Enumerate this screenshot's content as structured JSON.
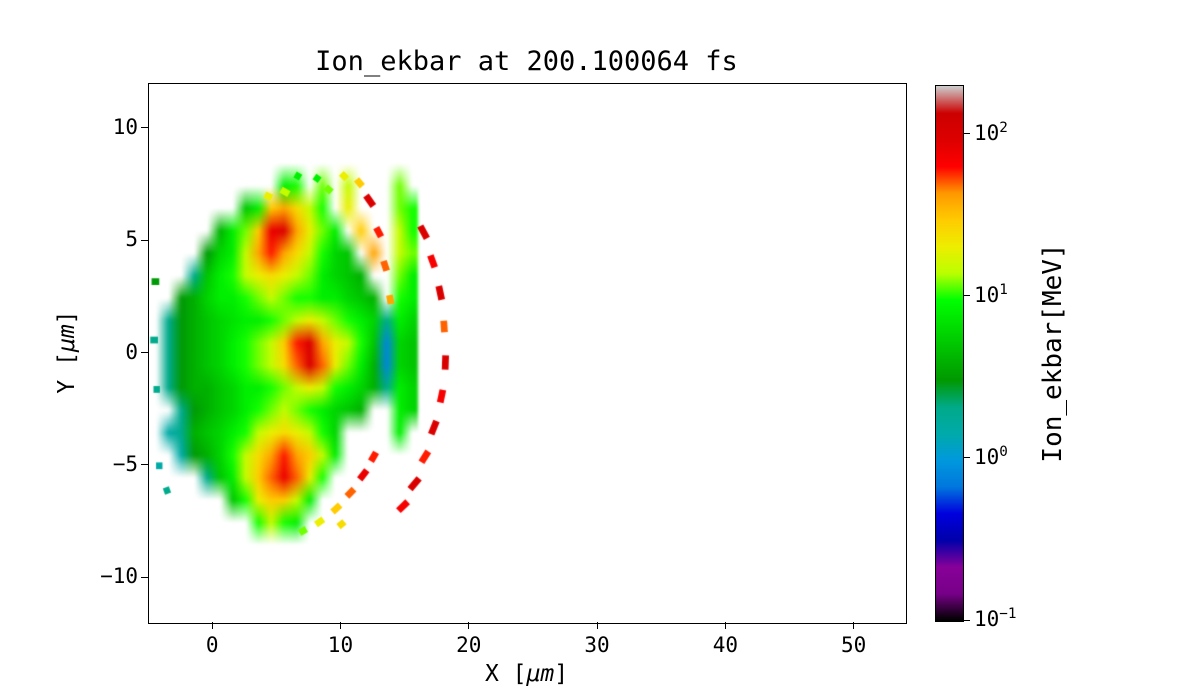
{
  "chart_data": {
    "type": "heatmap",
    "title": "Ion_ekbar at 200.100064 fs",
    "xlabel": "X [μm]",
    "ylabel": "Y [μm]",
    "xlim": [
      -5,
      54
    ],
    "ylim": [
      -12,
      12
    ],
    "x_ticks": [
      0,
      10,
      20,
      30,
      40,
      50
    ],
    "x_tick_labels": [
      "0",
      "10",
      "20",
      "30",
      "40",
      "50"
    ],
    "y_ticks": [
      -10,
      -5,
      0,
      5,
      10
    ],
    "y_tick_labels": [
      "−10",
      "−5",
      "0",
      "5",
      "10"
    ],
    "grid_on": false,
    "legend": "none",
    "colorbar": {
      "label": "Ion_ekbar[MeV]",
      "scale": "log",
      "vmin": 0.1,
      "vmax": 200,
      "tick_values": [
        0.1,
        1,
        10,
        100
      ],
      "tick_exponents": [
        "−1",
        "0",
        "1",
        "2"
      ],
      "colormap": "nipy_spectral",
      "stops": [
        [
          0.0,
          "#000000"
        ],
        [
          0.05,
          "#770088"
        ],
        [
          0.1,
          "#880099"
        ],
        [
          0.15,
          "#0000aa"
        ],
        [
          0.2,
          "#0000dd"
        ],
        [
          0.25,
          "#0077dd"
        ],
        [
          0.3,
          "#0099dd"
        ],
        [
          0.35,
          "#00aaaa"
        ],
        [
          0.4,
          "#00aa88"
        ],
        [
          0.45,
          "#009900"
        ],
        [
          0.5,
          "#00bb00"
        ],
        [
          0.55,
          "#00dd00"
        ],
        [
          0.6,
          "#00ff00"
        ],
        [
          0.65,
          "#bbff00"
        ],
        [
          0.7,
          "#eeee00"
        ],
        [
          0.75,
          "#ffcc00"
        ],
        [
          0.8,
          "#ff9900"
        ],
        [
          0.85,
          "#ff0000"
        ],
        [
          0.9,
          "#dd0000"
        ],
        [
          0.95,
          "#cc0000"
        ],
        [
          1.0,
          "#cccccc"
        ]
      ]
    },
    "grid": {
      "x0": -5,
      "y0": 9,
      "dx": 1,
      "dy": 1,
      "note": "approx mean ion energy [MeV] per 1μm cell, rows y=9..-9 top to bottom, cols x=-5..15, 0=empty",
      "values_mev": [
        [
          0,
          0,
          0,
          0,
          0,
          0,
          0,
          0,
          0,
          0,
          0,
          0,
          0,
          0,
          0,
          0,
          0,
          0,
          0,
          0,
          0
        ],
        [
          0,
          0,
          0,
          0,
          0,
          0,
          0,
          0,
          0,
          0,
          8,
          10,
          0,
          12,
          0,
          15,
          0,
          0,
          0,
          12,
          0
        ],
        [
          0,
          0,
          0,
          0,
          0,
          0,
          0,
          5,
          8,
          30,
          40,
          25,
          15,
          10,
          0,
          20,
          0,
          0,
          0,
          12,
          10
        ],
        [
          0,
          0,
          0,
          0,
          0,
          4,
          8,
          12,
          30,
          80,
          100,
          40,
          20,
          12,
          8,
          0,
          30,
          0,
          0,
          15,
          10
        ],
        [
          0,
          0,
          0,
          0,
          3,
          6,
          8,
          15,
          40,
          60,
          40,
          25,
          15,
          10,
          6,
          5,
          0,
          40,
          0,
          15,
          12
        ],
        [
          0,
          0,
          0,
          2,
          5,
          8,
          10,
          15,
          20,
          25,
          20,
          15,
          12,
          8,
          6,
          5,
          4,
          0,
          0,
          12,
          8
        ],
        [
          0,
          0,
          3,
          4,
          6,
          8,
          8,
          10,
          12,
          15,
          12,
          10,
          10,
          8,
          8,
          6,
          5,
          4,
          0,
          10,
          8
        ],
        [
          0,
          2,
          3,
          4,
          5,
          6,
          7,
          8,
          8,
          10,
          12,
          15,
          20,
          15,
          12,
          10,
          8,
          6,
          2,
          8,
          6
        ],
        [
          0,
          2,
          3,
          4,
          5,
          6,
          8,
          10,
          12,
          15,
          30,
          60,
          100,
          40,
          20,
          15,
          10,
          5,
          0.8,
          6,
          5
        ],
        [
          0,
          2,
          3,
          4,
          5,
          6,
          8,
          10,
          12,
          15,
          25,
          50,
          100,
          50,
          20,
          12,
          8,
          4,
          0.8,
          6,
          5
        ],
        [
          0,
          2,
          3,
          4,
          4,
          5,
          6,
          8,
          8,
          10,
          12,
          15,
          20,
          15,
          10,
          8,
          6,
          4,
          2,
          8,
          6
        ],
        [
          0,
          0,
          2,
          3,
          4,
          5,
          6,
          8,
          10,
          12,
          15,
          12,
          10,
          8,
          6,
          5,
          4,
          0,
          0,
          8,
          6
        ],
        [
          0,
          1.5,
          2,
          4,
          5,
          6,
          8,
          10,
          15,
          20,
          25,
          20,
          15,
          10,
          6,
          0,
          0,
          0,
          0,
          8,
          0
        ],
        [
          0,
          0,
          1.5,
          3,
          4,
          6,
          10,
          15,
          25,
          40,
          60,
          40,
          30,
          15,
          8,
          0,
          0,
          0,
          0,
          0,
          0
        ],
        [
          0,
          0,
          0,
          0,
          2,
          5,
          8,
          15,
          30,
          50,
          80,
          50,
          20,
          10,
          0,
          0,
          0,
          0,
          0,
          0,
          0
        ],
        [
          0,
          0,
          0,
          0,
          0,
          0,
          5,
          10,
          20,
          30,
          30,
          15,
          8,
          0,
          0,
          0,
          0,
          0,
          0,
          0,
          0
        ],
        [
          0,
          0,
          0,
          0,
          0,
          0,
          0,
          0,
          10,
          15,
          10,
          8,
          0,
          0,
          0,
          0,
          0,
          0,
          0,
          0,
          0
        ],
        [
          0,
          0,
          0,
          0,
          0,
          0,
          0,
          0,
          0,
          0,
          0,
          0,
          0,
          0,
          0,
          0,
          0,
          0,
          0,
          0,
          0
        ]
      ]
    },
    "speckles_note": "[x μm, y μm, angle deg, value MeV, length μm]",
    "speckles": [
      [
        16.4,
        5.4,
        -62,
        100,
        1.1
      ],
      [
        17.1,
        4.1,
        -70,
        70,
        1.0
      ],
      [
        17.7,
        2.7,
        -78,
        100,
        1.1
      ],
      [
        18.0,
        1.2,
        -86,
        50,
        0.9
      ],
      [
        18.1,
        -0.4,
        88,
        100,
        1.1
      ],
      [
        17.8,
        -1.9,
        78,
        70,
        1.0
      ],
      [
        17.2,
        -3.3,
        68,
        100,
        1.1
      ],
      [
        16.5,
        -4.6,
        58,
        60,
        1.0
      ],
      [
        15.7,
        -5.8,
        50,
        100,
        1.1
      ],
      [
        14.8,
        -6.8,
        44,
        70,
        1.0
      ],
      [
        12.2,
        6.8,
        -55,
        100,
        1.0
      ],
      [
        11.4,
        7.6,
        -50,
        30,
        0.7
      ],
      [
        10.2,
        7.9,
        -45,
        20,
        0.6
      ],
      [
        12.9,
        5.4,
        -62,
        60,
        0.8
      ],
      [
        13.4,
        3.9,
        -72,
        50,
        0.8
      ],
      [
        13.8,
        2.4,
        -80,
        40,
        0.7
      ],
      [
        9.0,
        7.3,
        -40,
        12,
        0.6
      ],
      [
        8.1,
        7.8,
        -35,
        8,
        0.5
      ],
      [
        5.6,
        7.2,
        -30,
        15,
        0.7
      ],
      [
        6.6,
        7.9,
        -30,
        8,
        0.5
      ],
      [
        4.3,
        7.0,
        -25,
        20,
        0.6
      ],
      [
        9.6,
        -6.9,
        42,
        30,
        0.8
      ],
      [
        10.7,
        -6.2,
        46,
        50,
        0.8
      ],
      [
        11.7,
        -5.4,
        52,
        80,
        0.9
      ],
      [
        12.5,
        -4.6,
        60,
        60,
        0.8
      ],
      [
        8.3,
        -7.5,
        35,
        20,
        0.7
      ],
      [
        7.0,
        -7.9,
        30,
        12,
        0.6
      ],
      [
        10.0,
        -7.6,
        40,
        25,
        0.6
      ],
      [
        -4.5,
        3.2,
        0,
        3,
        0.6
      ],
      [
        -4.6,
        0.6,
        0,
        2,
        0.6
      ],
      [
        -4.4,
        -1.6,
        0,
        2,
        0.5
      ],
      [
        -4.2,
        -5.0,
        0,
        1.5,
        0.5
      ],
      [
        -3.6,
        -6.1,
        20,
        2,
        0.5
      ]
    ]
  }
}
